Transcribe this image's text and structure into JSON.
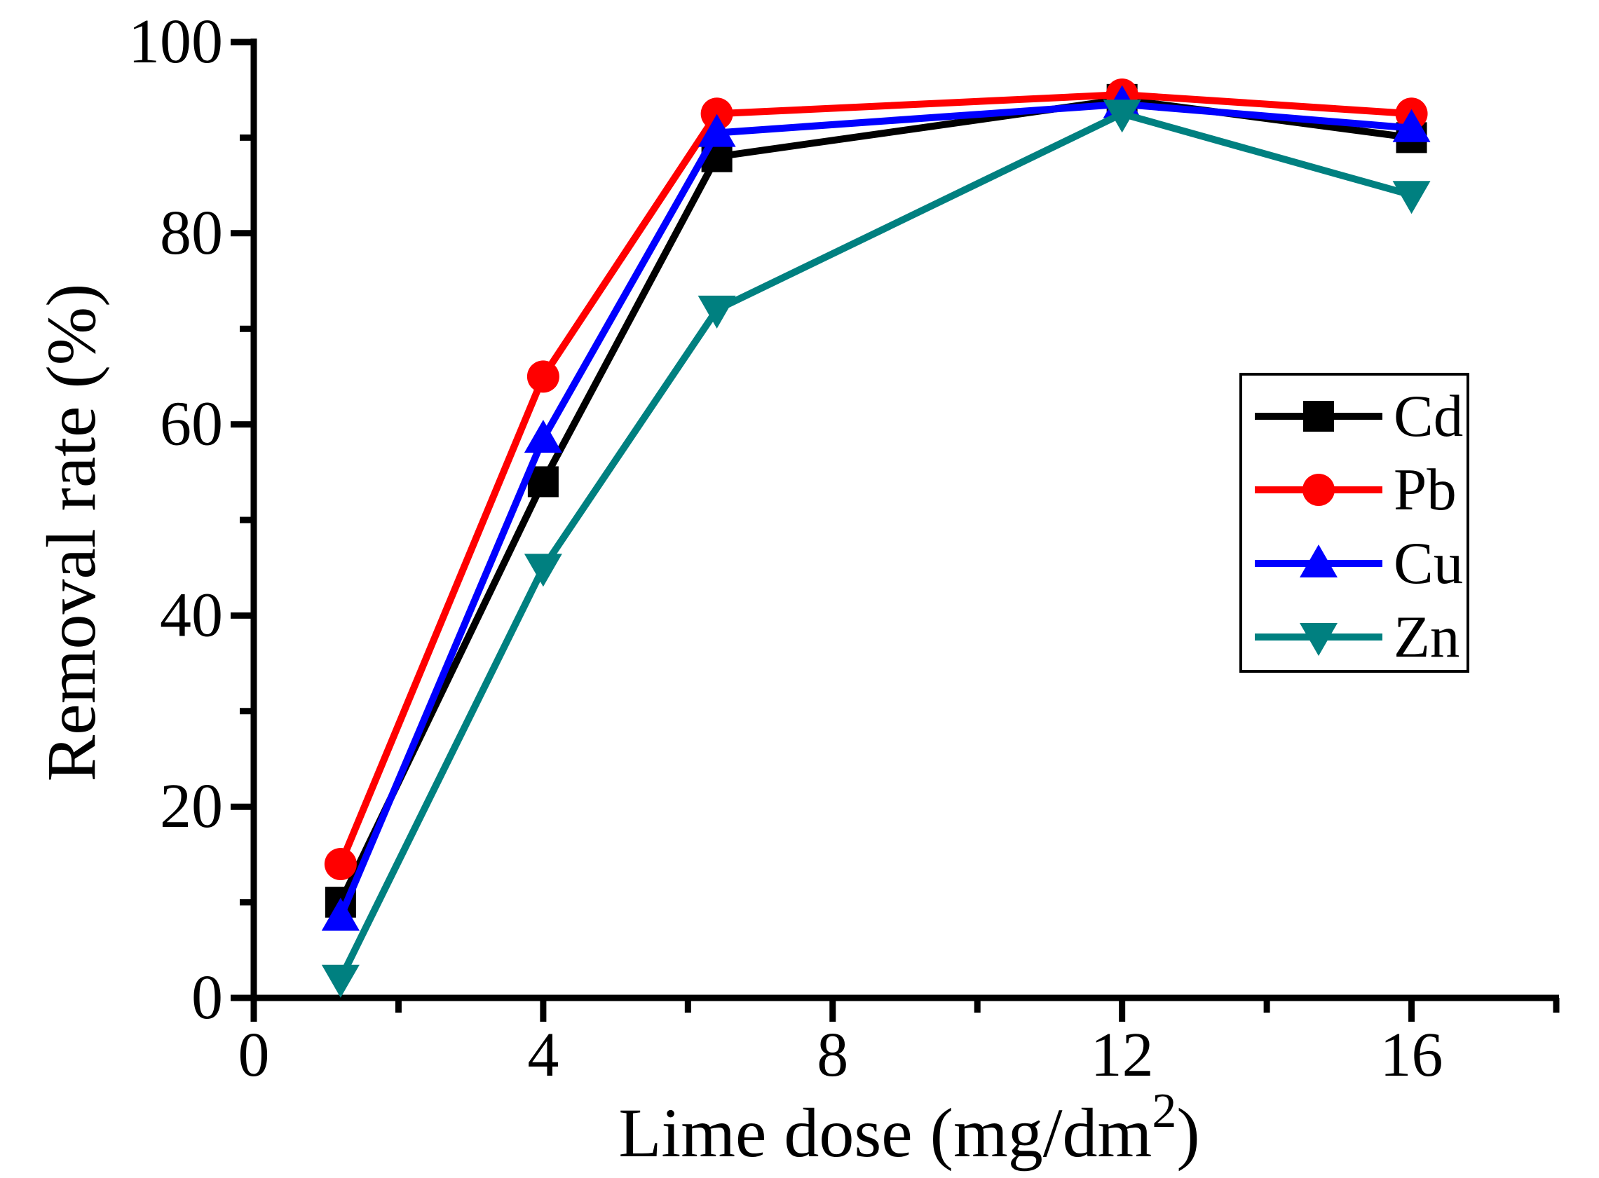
{
  "figure": {
    "background": "#ffffff",
    "axis_color": "#000000"
  },
  "chart_data": {
    "type": "line",
    "title": "",
    "xlabel": "Lime dose (mg/dm²)",
    "xlabel_parts": {
      "main": "Lime dose (mg/dm",
      "sup": "2",
      "close": ")"
    },
    "ylabel": "Removal rate (%)",
    "xlim": [
      0,
      18
    ],
    "ylim": [
      0,
      100
    ],
    "x_major_ticks": [
      0,
      4,
      8,
      12,
      16
    ],
    "x_minor_ticks": [
      2,
      6,
      10,
      14,
      18
    ],
    "y_major_ticks": [
      0,
      20,
      40,
      60,
      80,
      100
    ],
    "y_minor_ticks": [
      10,
      30,
      50,
      70,
      90
    ],
    "x_tick_labels": [
      "0",
      "4",
      "8",
      "12",
      "16"
    ],
    "y_tick_labels": [
      "0",
      "20",
      "40",
      "60",
      "80",
      "100"
    ],
    "grid": false,
    "x": [
      1.2,
      4,
      6.4,
      12,
      16
    ],
    "series": [
      {
        "name": "Cd",
        "color": "#000000",
        "marker": "square",
        "values": [
          10,
          54,
          88,
          94,
          90
        ]
      },
      {
        "name": "Pb",
        "color": "#ff0000",
        "marker": "circle",
        "values": [
          14,
          65,
          92.5,
          94.5,
          92.5
        ]
      },
      {
        "name": "Cu",
        "color": "#0000ff",
        "marker": "triangle-up",
        "values": [
          8.5,
          58.5,
          90.5,
          93.5,
          91
        ]
      },
      {
        "name": "Zn",
        "color": "#008080",
        "marker": "triangle-down",
        "values": [
          2,
          45,
          72,
          92.5,
          84
        ]
      }
    ],
    "legend": {
      "position": "inside-right",
      "entries": [
        "Cd",
        "Pb",
        "Cu",
        "Zn"
      ]
    }
  }
}
